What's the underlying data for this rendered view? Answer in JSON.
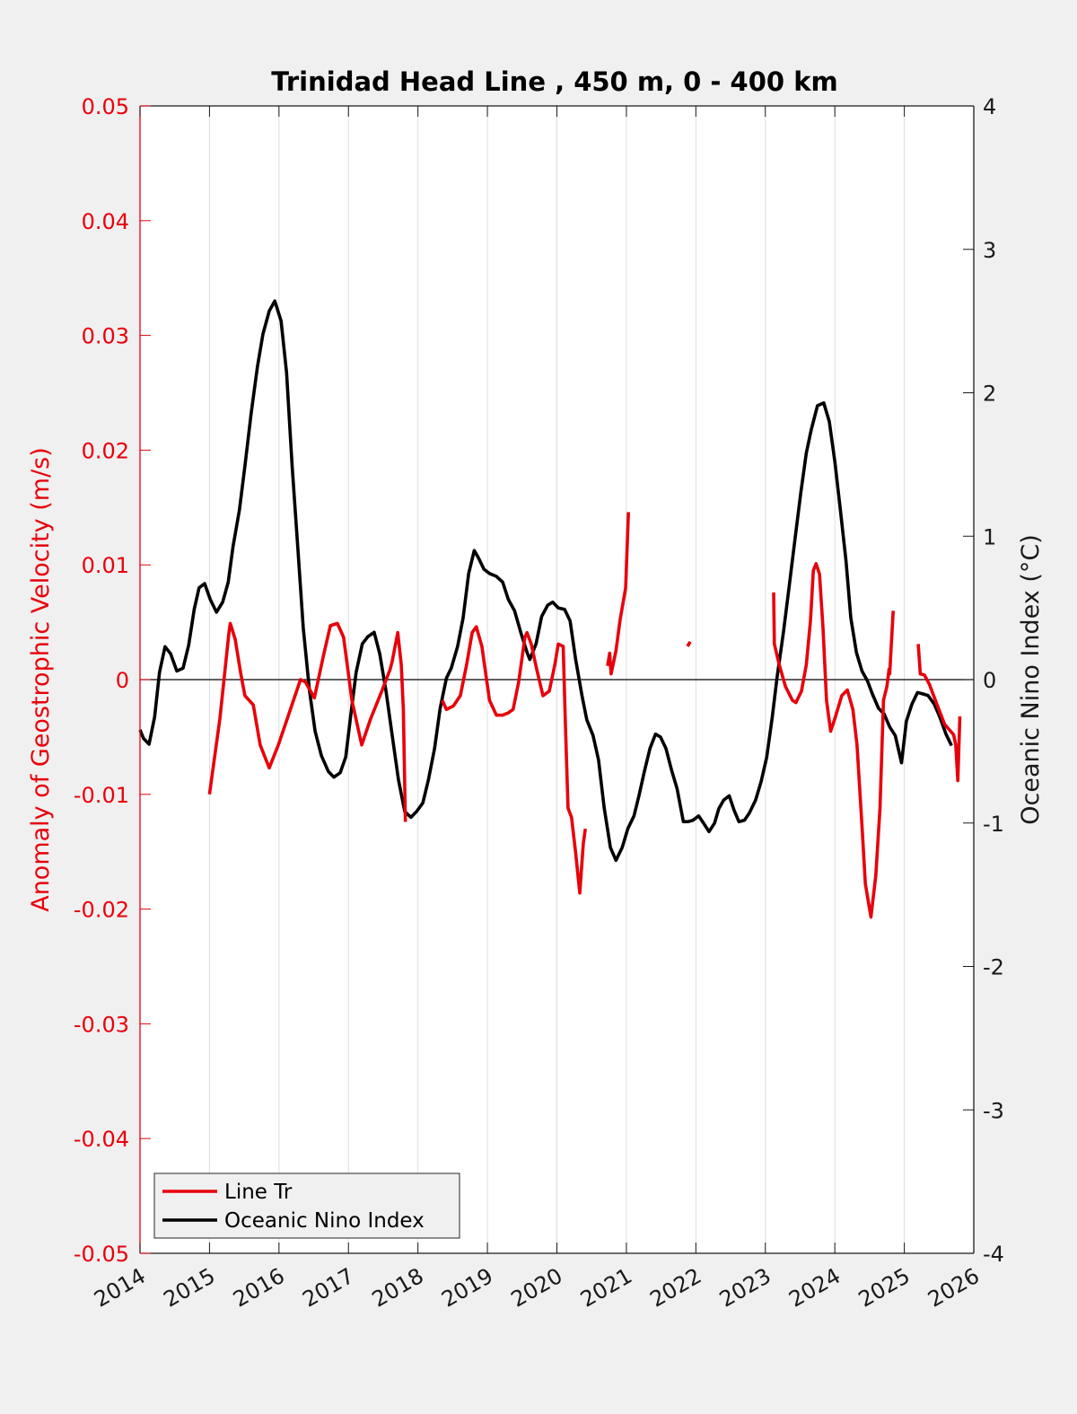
{
  "chart_data": {
    "type": "line",
    "title": "Trinidad Head Line , 450 m, 0 - 400 km",
    "xlabel": "",
    "ylabel_left": "Anomaly of Geostrophic Velocity (m/s)",
    "ylabel_right": "Oceanic Nino Index (°C)",
    "xlim": [
      2014,
      2026
    ],
    "ylim_left": [
      -0.05,
      0.05
    ],
    "ylim_right": [
      -4,
      4
    ],
    "grid": "vertical",
    "legend_position": "bottom-left",
    "x_ticks": [
      "2014",
      "2015",
      "2016",
      "2017",
      "2018",
      "2019",
      "2020",
      "2021",
      "2022",
      "2023",
      "2024",
      "2025",
      "2026"
    ],
    "y_ticks_left": [
      "0.05",
      "0.04",
      "0.03",
      "0.02",
      "0.01",
      "0",
      "-0.01",
      "-0.02",
      "-0.03",
      "-0.04",
      "-0.05"
    ],
    "y_ticks_right": [
      "4",
      "3",
      "2",
      "1",
      "0",
      "-1",
      "-2",
      "-3",
      "-4"
    ],
    "colors": {
      "line_tr": "#e8000b",
      "oni": "#000000",
      "left_axis": "#e8000b",
      "right_axis": "#1a1a1a"
    },
    "series": [
      {
        "name": "Line Tr",
        "axis": "left",
        "segments": [
          [
            [
              2015.0,
              -0.01
            ],
            [
              2015.15,
              -0.0034
            ],
            [
              2015.28,
              0.0041
            ],
            [
              2015.3,
              0.0049
            ],
            [
              2015.37,
              0.0035
            ],
            [
              2015.45,
              0.0005
            ],
            [
              2015.51,
              -0.0014
            ],
            [
              2015.63,
              -0.0022
            ],
            [
              2015.73,
              -0.0057
            ],
            [
              2015.86,
              -0.0077
            ],
            [
              2015.99,
              -0.0057
            ],
            [
              2016.12,
              -0.0034
            ],
            [
              2016.31,
              0.0
            ],
            [
              2016.38,
              -0.0002
            ],
            [
              2016.51,
              -0.0016
            ],
            [
              2016.64,
              0.0021
            ],
            [
              2016.74,
              0.0047
            ],
            [
              2016.84,
              0.0049
            ],
            [
              2016.93,
              0.0037
            ],
            [
              2017.05,
              -0.0018
            ],
            [
              2017.19,
              -0.0057
            ],
            [
              2017.32,
              -0.0034
            ],
            [
              2017.48,
              -0.001
            ],
            [
              2017.6,
              0.0009
            ],
            [
              2017.63,
              0.0016
            ],
            [
              2017.71,
              0.0041
            ],
            [
              2017.76,
              0.0013
            ],
            [
              2017.79,
              -0.0026
            ],
            [
              2017.82,
              -0.0124
            ]
          ],
          [
            [
              2018.35,
              -0.0018
            ],
            [
              2018.41,
              -0.0026
            ],
            [
              2018.51,
              -0.0023
            ],
            [
              2018.61,
              -0.0014
            ],
            [
              2018.7,
              0.0013
            ],
            [
              2018.78,
              0.0041
            ],
            [
              2018.84,
              0.0046
            ],
            [
              2018.92,
              0.0029
            ],
            [
              2019.03,
              -0.0018
            ],
            [
              2019.13,
              -0.0031
            ],
            [
              2019.22,
              -0.0031
            ],
            [
              2019.3,
              -0.0029
            ],
            [
              2019.37,
              -0.0026
            ],
            [
              2019.45,
              -0.0002
            ],
            [
              2019.54,
              0.0037
            ],
            [
              2019.57,
              0.0041
            ],
            [
              2019.63,
              0.0031
            ],
            [
              2019.71,
              0.0009
            ],
            [
              2019.8,
              -0.0014
            ],
            [
              2019.89,
              -0.001
            ],
            [
              2019.97,
              0.0013
            ],
            [
              2020.02,
              0.0031
            ],
            [
              2020.09,
              0.0029
            ],
            [
              2020.12,
              -0.0034
            ],
            [
              2020.16,
              -0.0112
            ],
            [
              2020.21,
              -0.012
            ],
            [
              2020.27,
              -0.0151
            ],
            [
              2020.33,
              -0.0186
            ],
            [
              2020.38,
              -0.0143
            ],
            [
              2020.41,
              -0.013
            ]
          ],
          [
            [
              2020.73,
              0.0012
            ],
            [
              2020.76,
              0.0023
            ],
            [
              2020.78,
              0.0005
            ],
            [
              2020.85,
              0.0025
            ],
            [
              2020.91,
              0.0052
            ],
            [
              2020.99,
              0.008
            ],
            [
              2021.03,
              0.0146
            ]
          ],
          [
            [
              2021.88,
              0.0029
            ],
            [
              2021.92,
              0.0033
            ]
          ],
          [
            [
              2023.12,
              0.0076
            ],
            [
              2023.13,
              0.0031
            ],
            [
              2023.2,
              0.0013
            ],
            [
              2023.29,
              -0.0006
            ],
            [
              2023.39,
              -0.0018
            ],
            [
              2023.44,
              -0.002
            ],
            [
              2023.52,
              -0.001
            ],
            [
              2023.59,
              0.0013
            ],
            [
              2023.65,
              0.0052
            ],
            [
              2023.69,
              0.0095
            ],
            [
              2023.73,
              0.0101
            ],
            [
              2023.78,
              0.0092
            ],
            [
              2023.83,
              0.0045
            ],
            [
              2023.88,
              -0.0018
            ],
            [
              2023.94,
              -0.0045
            ],
            [
              2024.0,
              -0.0034
            ],
            [
              2024.1,
              -0.0014
            ],
            [
              2024.18,
              -0.0009
            ],
            [
              2024.26,
              -0.0026
            ],
            [
              2024.32,
              -0.0057
            ],
            [
              2024.39,
              -0.0127
            ],
            [
              2024.44,
              -0.0178
            ],
            [
              2024.52,
              -0.0207
            ],
            [
              2024.59,
              -0.0171
            ],
            [
              2024.65,
              -0.0112
            ],
            [
              2024.7,
              -0.0018
            ],
            [
              2024.75,
              -0.0006
            ],
            [
              2024.78,
              0.0009
            ],
            [
              2024.79,
              0.0005
            ],
            [
              2024.84,
              0.006
            ]
          ],
          [
            [
              2025.2,
              0.0031
            ],
            [
              2025.23,
              0.0005
            ],
            [
              2025.29,
              0.0004
            ],
            [
              2025.36,
              -0.0004
            ],
            [
              2025.46,
              -0.002
            ],
            [
              2025.58,
              -0.0039
            ],
            [
              2025.71,
              -0.0048
            ],
            [
              2025.74,
              -0.0057
            ],
            [
              2025.77,
              -0.0088
            ],
            [
              2025.8,
              -0.0032
            ]
          ]
        ]
      },
      {
        "name": "Oceanic Nino Index",
        "axis": "right",
        "segments": [
          [
            [
              2014.0,
              -0.35
            ],
            [
              2014.05,
              -0.41
            ],
            [
              2014.13,
              -0.45
            ],
            [
              2014.21,
              -0.26
            ],
            [
              2014.28,
              0.05
            ],
            [
              2014.36,
              0.23
            ],
            [
              2014.44,
              0.18
            ],
            [
              2014.53,
              0.06
            ],
            [
              2014.62,
              0.08
            ],
            [
              2014.7,
              0.24
            ],
            [
              2014.78,
              0.49
            ],
            [
              2014.85,
              0.64
            ],
            [
              2014.93,
              0.67
            ],
            [
              2015.01,
              0.56
            ],
            [
              2015.1,
              0.47
            ],
            [
              2015.19,
              0.54
            ],
            [
              2015.27,
              0.68
            ],
            [
              2015.34,
              0.93
            ],
            [
              2015.43,
              1.18
            ],
            [
              2015.51,
              1.49
            ],
            [
              2015.6,
              1.86
            ],
            [
              2015.69,
              2.18
            ],
            [
              2015.77,
              2.41
            ],
            [
              2015.86,
              2.57
            ],
            [
              2015.94,
              2.64
            ],
            [
              2016.03,
              2.5
            ],
            [
              2016.11,
              2.14
            ],
            [
              2016.19,
              1.49
            ],
            [
              2016.27,
              0.93
            ],
            [
              2016.35,
              0.36
            ],
            [
              2016.44,
              -0.08
            ],
            [
              2016.52,
              -0.36
            ],
            [
              2016.61,
              -0.53
            ],
            [
              2016.71,
              -0.64
            ],
            [
              2016.79,
              -0.68
            ],
            [
              2016.88,
              -0.65
            ],
            [
              2016.96,
              -0.54
            ],
            [
              2017.03,
              -0.26
            ],
            [
              2017.11,
              0.05
            ],
            [
              2017.2,
              0.25
            ],
            [
              2017.28,
              0.3
            ],
            [
              2017.37,
              0.33
            ],
            [
              2017.45,
              0.18
            ],
            [
              2017.54,
              -0.08
            ],
            [
              2017.63,
              -0.39
            ],
            [
              2017.72,
              -0.7
            ],
            [
              2017.81,
              -0.92
            ],
            [
              2017.9,
              -0.96
            ],
            [
              2017.98,
              -0.92
            ],
            [
              2018.07,
              -0.86
            ],
            [
              2018.15,
              -0.7
            ],
            [
              2018.24,
              -0.48
            ],
            [
              2018.32,
              -0.2
            ],
            [
              2018.41,
              0.01
            ],
            [
              2018.48,
              0.08
            ],
            [
              2018.57,
              0.23
            ],
            [
              2018.65,
              0.43
            ],
            [
              2018.73,
              0.74
            ],
            [
              2018.81,
              0.9
            ],
            [
              2018.87,
              0.85
            ],
            [
              2018.95,
              0.77
            ],
            [
              2019.03,
              0.74
            ],
            [
              2019.13,
              0.72
            ],
            [
              2019.22,
              0.68
            ],
            [
              2019.3,
              0.56
            ],
            [
              2019.39,
              0.48
            ],
            [
              2019.48,
              0.33
            ],
            [
              2019.57,
              0.19
            ],
            [
              2019.61,
              0.14
            ],
            [
              2019.7,
              0.25
            ],
            [
              2019.78,
              0.44
            ],
            [
              2019.87,
              0.52
            ],
            [
              2019.94,
              0.54
            ],
            [
              2020.02,
              0.5
            ],
            [
              2020.11,
              0.49
            ],
            [
              2020.19,
              0.41
            ],
            [
              2020.27,
              0.14
            ],
            [
              2020.36,
              -0.11
            ],
            [
              2020.43,
              -0.28
            ],
            [
              2020.52,
              -0.39
            ],
            [
              2020.6,
              -0.56
            ],
            [
              2020.68,
              -0.89
            ],
            [
              2020.77,
              -1.17
            ],
            [
              2020.85,
              -1.26
            ],
            [
              2020.94,
              -1.17
            ],
            [
              2021.02,
              -1.04
            ],
            [
              2021.11,
              -0.95
            ],
            [
              2021.18,
              -0.81
            ],
            [
              2021.26,
              -0.64
            ],
            [
              2021.34,
              -0.48
            ],
            [
              2021.42,
              -0.38
            ],
            [
              2021.49,
              -0.4
            ],
            [
              2021.57,
              -0.48
            ],
            [
              2021.65,
              -0.63
            ],
            [
              2021.73,
              -0.76
            ],
            [
              2021.82,
              -0.99
            ],
            [
              2021.89,
              -0.99
            ],
            [
              2021.96,
              -0.98
            ],
            [
              2022.04,
              -0.95
            ],
            [
              2022.11,
              -1.0
            ],
            [
              2022.19,
              -1.06
            ],
            [
              2022.27,
              -1.0
            ],
            [
              2022.33,
              -0.9
            ],
            [
              2022.4,
              -0.84
            ],
            [
              2022.48,
              -0.81
            ],
            [
              2022.55,
              -0.91
            ],
            [
              2022.62,
              -0.99
            ],
            [
              2022.7,
              -0.98
            ],
            [
              2022.77,
              -0.93
            ],
            [
              2022.86,
              -0.84
            ],
            [
              2022.94,
              -0.71
            ],
            [
              2023.02,
              -0.54
            ],
            [
              2023.1,
              -0.26
            ],
            [
              2023.17,
              0.02
            ],
            [
              2023.26,
              0.33
            ],
            [
              2023.34,
              0.64
            ],
            [
              2023.43,
              0.99
            ],
            [
              2023.51,
              1.3
            ],
            [
              2023.59,
              1.58
            ],
            [
              2023.66,
              1.74
            ],
            [
              2023.75,
              1.91
            ],
            [
              2023.84,
              1.93
            ],
            [
              2023.92,
              1.8
            ],
            [
              2024.0,
              1.52
            ],
            [
              2024.08,
              1.18
            ],
            [
              2024.16,
              0.83
            ],
            [
              2024.23,
              0.43
            ],
            [
              2024.31,
              0.19
            ],
            [
              2024.39,
              0.06
            ],
            [
              2024.47,
              -0.01
            ],
            [
              2024.54,
              -0.1
            ],
            [
              2024.63,
              -0.2
            ],
            [
              2024.71,
              -0.24
            ],
            [
              2024.79,
              -0.33
            ],
            [
              2024.87,
              -0.39
            ],
            [
              2024.96,
              -0.58
            ],
            [
              2025.03,
              -0.29
            ],
            [
              2025.11,
              -0.17
            ],
            [
              2025.19,
              -0.09
            ],
            [
              2025.27,
              -0.1
            ],
            [
              2025.34,
              -0.11
            ],
            [
              2025.43,
              -0.17
            ],
            [
              2025.51,
              -0.26
            ],
            [
              2025.6,
              -0.38
            ],
            [
              2025.68,
              -0.46
            ]
          ]
        ]
      }
    ]
  }
}
